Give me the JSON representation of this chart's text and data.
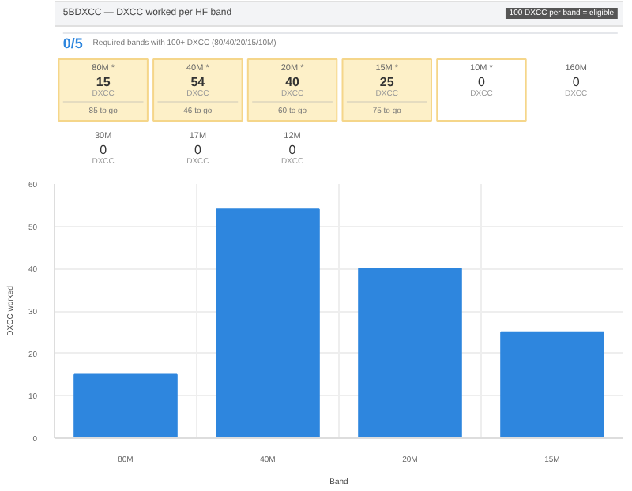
{
  "chart_data": [
    {
      "type": "other",
      "title": "5BDXCC — DXCC worked per HF band",
      "subtitle": "Required bands with 100+ DXCC (80/40/20/15/10M)",
      "legend_title": "100 DXCC per band = eligible",
      "clabel": "0/5",
      "ylabel": "DXCC",
      "data_labels": true,
      "categories": [
        "80M *",
        "40M *",
        "20M *",
        "15M *",
        "10M *",
        "160M",
        "30M",
        "17M",
        "12M"
      ],
      "values": [
        15,
        54,
        40,
        25,
        0,
        0,
        0,
        0,
        0
      ],
      "colors": [
        "#fdf0c8",
        "#fdf0c8",
        "#fdf0c8",
        "#fdf0c8",
        "#ffffff",
        null,
        null,
        null,
        null
      ],
      "annotations": [
        {
          "text": "85 to go",
          "x": "80M *"
        },
        {
          "text": "46 to go",
          "x": "40M *"
        },
        {
          "text": "60 to go",
          "x": "20M *"
        },
        {
          "text": "75 to go",
          "x": "15M *"
        }
      ]
    },
    {
      "type": "bar",
      "xlabel": "Band",
      "ylabel": "DXCC worked",
      "categories": [
        "80M",
        "40M",
        "20M",
        "15M"
      ],
      "values": [
        15,
        54,
        40,
        25
      ],
      "color": "#2e86de",
      "ylim": [
        0,
        60
      ],
      "yticks": [
        0,
        10,
        20,
        30,
        40,
        50,
        60
      ],
      "grid": true
    }
  ]
}
